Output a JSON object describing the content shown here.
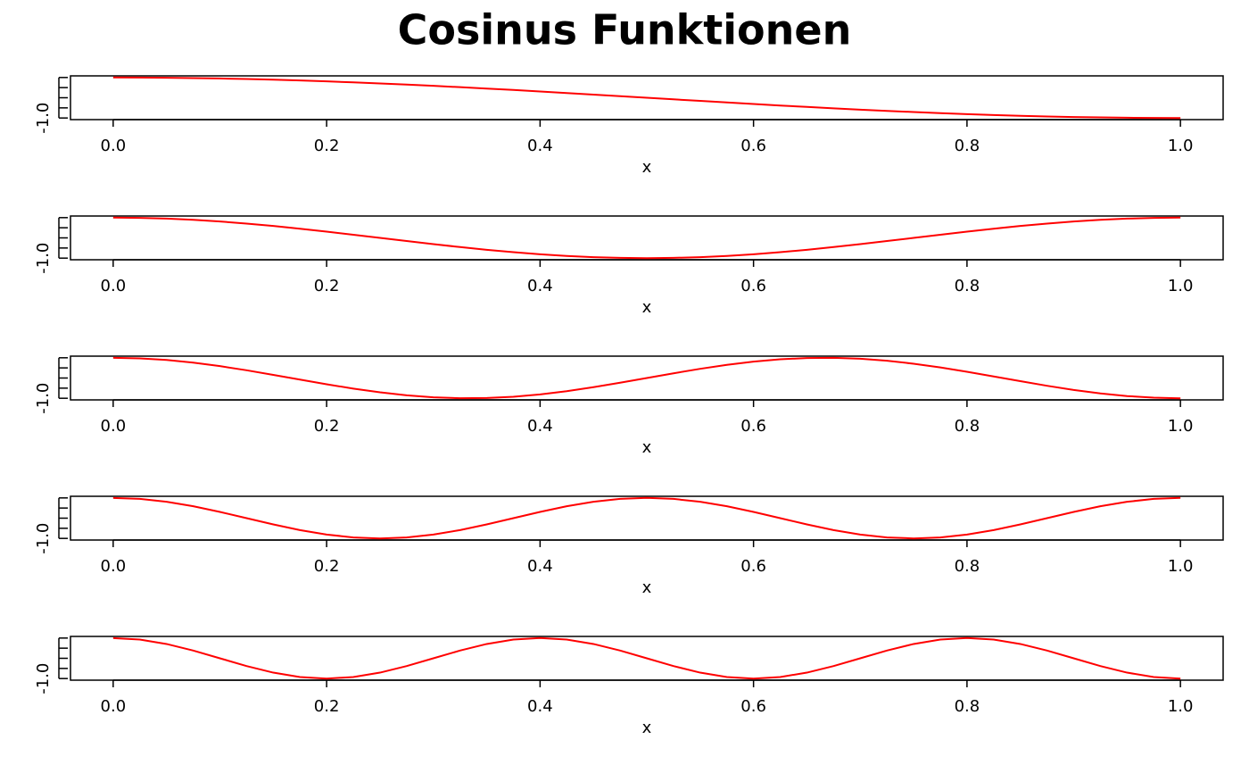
{
  "title": "Cosinus Funktionen",
  "chart_data": [
    {
      "type": "line",
      "xlabel": "x",
      "xlim": [
        -0.04,
        1.04
      ],
      "ylim": [
        -1.08,
        1.08
      ],
      "xticks": [
        {
          "value": 0,
          "label": "0.0"
        },
        0.2,
        0.4,
        0.6,
        0.8,
        {
          "value": 1,
          "label": "1.0"
        }
      ],
      "yticks": [
        {
          "value": -1,
          "label": "-1.0"
        },
        {
          "value": -0.5
        },
        {
          "value": 0
        },
        {
          "value": 0.5
        },
        {
          "value": 1
        }
      ],
      "grid": false,
      "series": [
        {
          "color": "#ff0000",
          "x": [
            0,
            0.025,
            0.05,
            0.075,
            0.1,
            0.125,
            0.15,
            0.175,
            0.2,
            0.225,
            0.25,
            0.275,
            0.3,
            0.325,
            0.35,
            0.375,
            0.4,
            0.425,
            0.45,
            0.475,
            0.5,
            0.525,
            0.55,
            0.575,
            0.6,
            0.625,
            0.65,
            0.675,
            0.7,
            0.725,
            0.75,
            0.775,
            0.8,
            0.825,
            0.85,
            0.875,
            0.9,
            0.925,
            0.95,
            0.975,
            1
          ],
          "values": [
            1,
            0.997,
            0.988,
            0.972,
            0.951,
            0.924,
            0.891,
            0.853,
            0.809,
            0.76,
            0.707,
            0.649,
            0.588,
            0.522,
            0.454,
            0.383,
            0.309,
            0.233,
            0.156,
            0.078,
            0,
            -0.078,
            -0.156,
            -0.233,
            -0.309,
            -0.383,
            -0.454,
            -0.522,
            -0.588,
            -0.649,
            -0.707,
            -0.76,
            -0.809,
            -0.853,
            -0.891,
            -0.924,
            -0.951,
            -0.972,
            -0.988,
            -0.997,
            -1
          ]
        }
      ]
    },
    {
      "type": "line",
      "xlabel": "x",
      "xlim": [
        -0.04,
        1.04
      ],
      "ylim": [
        -1.08,
        1.08
      ],
      "xticks": [
        {
          "value": 0,
          "label": "0.0"
        },
        0.2,
        0.4,
        0.6,
        0.8,
        {
          "value": 1,
          "label": "1.0"
        }
      ],
      "yticks": [
        {
          "value": -1,
          "label": "-1.0"
        },
        {
          "value": -0.5
        },
        {
          "value": 0
        },
        {
          "value": 0.5
        },
        {
          "value": 1
        }
      ],
      "grid": false,
      "series": [
        {
          "color": "#ff0000",
          "x": [
            0,
            0.025,
            0.05,
            0.075,
            0.1,
            0.125,
            0.15,
            0.175,
            0.2,
            0.225,
            0.25,
            0.275,
            0.3,
            0.325,
            0.35,
            0.375,
            0.4,
            0.425,
            0.45,
            0.475,
            0.5,
            0.525,
            0.55,
            0.575,
            0.6,
            0.625,
            0.65,
            0.675,
            0.7,
            0.725,
            0.75,
            0.775,
            0.8,
            0.825,
            0.85,
            0.875,
            0.9,
            0.925,
            0.95,
            0.975,
            1
          ],
          "values": [
            1,
            0.988,
            0.951,
            0.891,
            0.809,
            0.707,
            0.588,
            0.454,
            0.309,
            0.156,
            0,
            -0.156,
            -0.309,
            -0.454,
            -0.588,
            -0.707,
            -0.809,
            -0.891,
            -0.951,
            -0.988,
            -1,
            -0.988,
            -0.951,
            -0.891,
            -0.809,
            -0.707,
            -0.588,
            -0.454,
            -0.309,
            -0.156,
            0,
            0.156,
            0.309,
            0.454,
            0.588,
            0.707,
            0.809,
            0.891,
            0.951,
            0.988,
            1
          ]
        }
      ]
    },
    {
      "type": "line",
      "xlabel": "x",
      "xlim": [
        -0.04,
        1.04
      ],
      "ylim": [
        -1.08,
        1.08
      ],
      "xticks": [
        {
          "value": 0,
          "label": "0.0"
        },
        0.2,
        0.4,
        0.6,
        0.8,
        {
          "value": 1,
          "label": "1.0"
        }
      ],
      "yticks": [
        {
          "value": -1,
          "label": "-1.0"
        },
        {
          "value": -0.5
        },
        {
          "value": 0
        },
        {
          "value": 0.5
        },
        {
          "value": 1
        }
      ],
      "grid": false,
      "series": [
        {
          "color": "#ff0000",
          "x": [
            0,
            0.025,
            0.05,
            0.075,
            0.1,
            0.125,
            0.15,
            0.175,
            0.2,
            0.225,
            0.25,
            0.275,
            0.3,
            0.325,
            0.35,
            0.375,
            0.4,
            0.425,
            0.45,
            0.475,
            0.5,
            0.525,
            0.55,
            0.575,
            0.6,
            0.625,
            0.65,
            0.675,
            0.7,
            0.725,
            0.75,
            0.775,
            0.8,
            0.825,
            0.85,
            0.875,
            0.9,
            0.925,
            0.95,
            0.975,
            1
          ],
          "values": [
            1,
            0.972,
            0.891,
            0.76,
            0.588,
            0.383,
            0.156,
            -0.078,
            -0.309,
            -0.522,
            -0.707,
            -0.853,
            -0.951,
            -0.997,
            -0.988,
            -0.924,
            -0.809,
            -0.649,
            -0.454,
            -0.233,
            0,
            0.233,
            0.454,
            0.649,
            0.809,
            0.924,
            0.988,
            0.997,
            0.951,
            0.853,
            0.707,
            0.522,
            0.309,
            0.078,
            -0.156,
            -0.383,
            -0.588,
            -0.76,
            -0.891,
            -0.972,
            -1
          ]
        }
      ]
    },
    {
      "type": "line",
      "xlabel": "x",
      "xlim": [
        -0.04,
        1.04
      ],
      "ylim": [
        -1.08,
        1.08
      ],
      "xticks": [
        {
          "value": 0,
          "label": "0.0"
        },
        0.2,
        0.4,
        0.6,
        0.8,
        {
          "value": 1,
          "label": "1.0"
        }
      ],
      "yticks": [
        {
          "value": -1,
          "label": "-1.0"
        },
        {
          "value": -0.5
        },
        {
          "value": 0
        },
        {
          "value": 0.5
        },
        {
          "value": 1
        }
      ],
      "grid": false,
      "series": [
        {
          "color": "#ff0000",
          "x": [
            0,
            0.025,
            0.05,
            0.075,
            0.1,
            0.125,
            0.15,
            0.175,
            0.2,
            0.225,
            0.25,
            0.275,
            0.3,
            0.325,
            0.35,
            0.375,
            0.4,
            0.425,
            0.45,
            0.475,
            0.5,
            0.525,
            0.55,
            0.575,
            0.6,
            0.625,
            0.65,
            0.675,
            0.7,
            0.725,
            0.75,
            0.775,
            0.8,
            0.825,
            0.85,
            0.875,
            0.9,
            0.925,
            0.95,
            0.975,
            1
          ],
          "values": [
            1,
            0.951,
            0.809,
            0.588,
            0.309,
            0,
            -0.309,
            -0.588,
            -0.809,
            -0.951,
            -1,
            -0.951,
            -0.809,
            -0.588,
            -0.309,
            0,
            0.309,
            0.588,
            0.809,
            0.951,
            1,
            0.951,
            0.809,
            0.588,
            0.309,
            0,
            -0.309,
            -0.588,
            -0.809,
            -0.951,
            -1,
            -0.951,
            -0.809,
            -0.588,
            -0.309,
            0,
            0.309,
            0.588,
            0.809,
            0.951,
            1
          ]
        }
      ]
    },
    {
      "type": "line",
      "xlabel": "x",
      "xlim": [
        -0.04,
        1.04
      ],
      "ylim": [
        -1.08,
        1.08
      ],
      "xticks": [
        {
          "value": 0,
          "label": "0.0"
        },
        0.2,
        0.4,
        0.6,
        0.8,
        {
          "value": 1,
          "label": "1.0"
        }
      ],
      "yticks": [
        {
          "value": -1,
          "label": "-1.0"
        },
        {
          "value": -0.5
        },
        {
          "value": 0
        },
        {
          "value": 0.5
        },
        {
          "value": 1
        }
      ],
      "grid": false,
      "series": [
        {
          "color": "#ff0000",
          "x": [
            0,
            0.025,
            0.05,
            0.075,
            0.1,
            0.125,
            0.15,
            0.175,
            0.2,
            0.225,
            0.25,
            0.275,
            0.3,
            0.325,
            0.35,
            0.375,
            0.4,
            0.425,
            0.45,
            0.475,
            0.5,
            0.525,
            0.55,
            0.575,
            0.6,
            0.625,
            0.65,
            0.675,
            0.7,
            0.725,
            0.75,
            0.775,
            0.8,
            0.825,
            0.85,
            0.875,
            0.9,
            0.925,
            0.95,
            0.975,
            1
          ],
          "values": [
            1,
            0.924,
            0.707,
            0.383,
            0,
            -0.383,
            -0.707,
            -0.924,
            -1,
            -0.924,
            -0.707,
            -0.383,
            0,
            0.383,
            0.707,
            0.924,
            1,
            0.924,
            0.707,
            0.383,
            0,
            -0.383,
            -0.707,
            -0.924,
            -1,
            -0.924,
            -0.707,
            -0.383,
            0,
            0.383,
            0.707,
            0.924,
            1,
            0.924,
            0.707,
            0.383,
            0,
            -0.383,
            -0.707,
            -0.924,
            -1
          ]
        }
      ]
    }
  ]
}
